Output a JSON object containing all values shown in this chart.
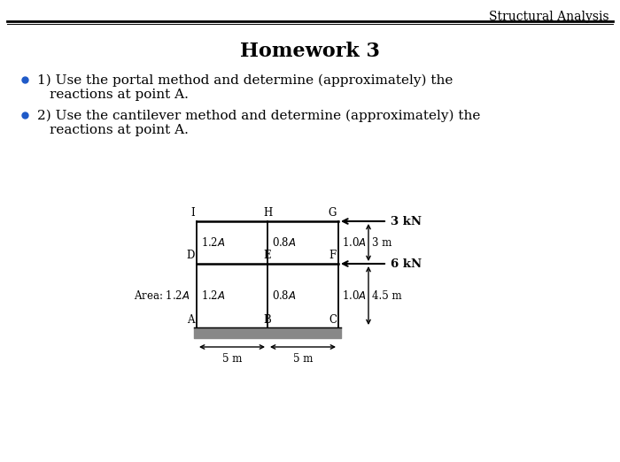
{
  "title": "Homework 3",
  "header": "Structural Analysis",
  "bullet1_line1": "1) Use the portal method and determine (approximately) the",
  "bullet1_line2": "reactions at point A.",
  "bullet2_line1": "2) Use the cantilever method and determine (approximately) the",
  "bullet2_line2": "reactions at point A.",
  "bullet_color": "#1F5AC8",
  "text_color": "#000000",
  "bg_color": "#ffffff",
  "force_top": "3 kN",
  "force_mid": "6 kN",
  "dim_right_top": "3 m",
  "dim_right_bot": "4.5 m",
  "dim_bot_left": "5 m",
  "dim_bot_right": "5 m",
  "area_label_prefix": "Area:"
}
